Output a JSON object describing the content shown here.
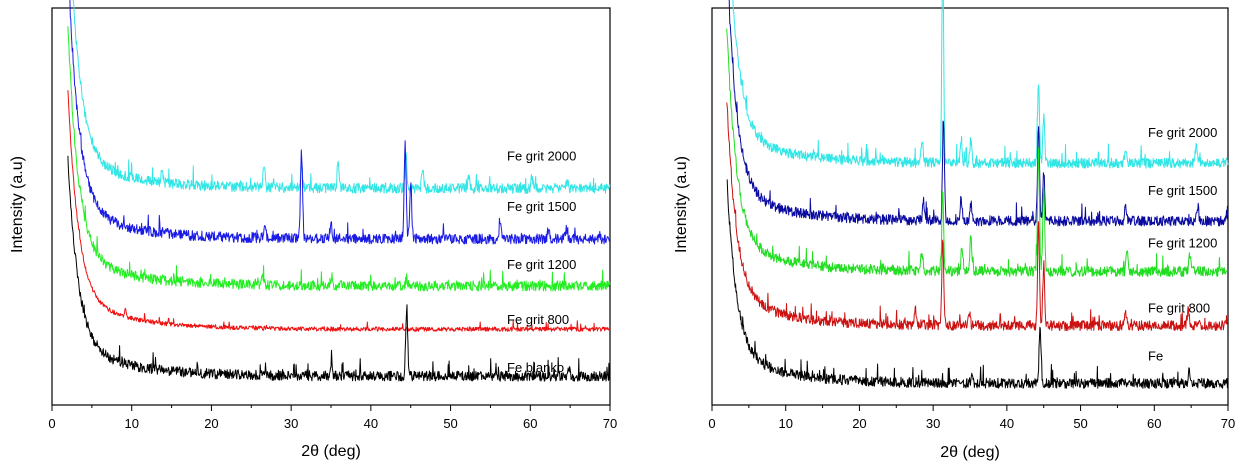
{
  "chart_data": [
    {
      "type": "line",
      "title": "",
      "xlabel": "2θ (deg)",
      "ylabel": "Intensity (a.u)",
      "xlim": [
        0,
        70
      ],
      "xticks": [
        0,
        10,
        20,
        30,
        40,
        50,
        60,
        70
      ],
      "ylim": [
        0,
        11
      ],
      "y_tick_labels": false,
      "grid": false,
      "legend": "inline labels at right",
      "series": [
        {
          "name": "Fe grit 2000",
          "color": "#33e6e6",
          "baseline": 6.0,
          "peaks": [
            [
              13.8,
              0.3
            ],
            [
              26.6,
              0.6
            ],
            [
              31.3,
              0.6
            ],
            [
              35.9,
              0.7
            ],
            [
              44.4,
              0.9
            ],
            [
              46.5,
              0.6
            ],
            [
              52.3,
              0.3
            ],
            [
              60.2,
              0.3
            ],
            [
              64.6,
              0.2
            ]
          ]
        },
        {
          "name": "Fe grit 1500",
          "color": "#1a1ae6",
          "baseline": 4.6,
          "peaks": [
            [
              26.7,
              0.3
            ],
            [
              31.3,
              2.4
            ],
            [
              35.0,
              0.4
            ],
            [
              44.3,
              2.6
            ],
            [
              45.0,
              1.6
            ],
            [
              56.2,
              0.4
            ],
            [
              62.3,
              0.3
            ],
            [
              64.5,
              0.3
            ]
          ]
        },
        {
          "name": "Fe grit 1200",
          "color": "#22ee22",
          "baseline": 3.3,
          "peaks": [
            [
              26.4,
              0.3
            ],
            [
              35.1,
              0.3
            ],
            [
              44.5,
              0.2
            ]
          ]
        },
        {
          "name": "Fe grit 800",
          "color": "#ee1111",
          "baseline": 2.1,
          "peaks": [
            [
              9.2,
              0.2
            ]
          ]
        },
        {
          "name": "Fe blanko",
          "color": "#000000",
          "baseline": 0.8,
          "peaks": [
            [
              35.0,
              0.3
            ],
            [
              44.5,
              1.8
            ],
            [
              64.8,
              0.3
            ]
          ]
        }
      ]
    },
    {
      "type": "line",
      "title": "",
      "xlabel": "2θ (deg)",
      "ylabel": "Intensity (a.u)",
      "xlim": [
        0,
        70
      ],
      "xticks": [
        0,
        10,
        20,
        30,
        40,
        50,
        60,
        70
      ],
      "ylim": [
        0,
        11
      ],
      "y_tick_labels": false,
      "grid": false,
      "legend": "inline labels at right",
      "series": [
        {
          "name": "Fe grit 2000",
          "color": "#33e6e6",
          "baseline": 6.7,
          "peaks": [
            [
              28.5,
              0.6
            ],
            [
              31.3,
              5.5
            ],
            [
              33.8,
              0.7
            ],
            [
              35.1,
              0.6
            ],
            [
              44.3,
              2.2
            ],
            [
              45.0,
              1.3
            ],
            [
              56.1,
              0.4
            ],
            [
              65.7,
              0.5
            ]
          ]
        },
        {
          "name": "Fe grit 1500",
          "color": "#0a0aa0",
          "baseline": 5.1,
          "peaks": [
            [
              28.7,
              0.5
            ],
            [
              31.4,
              2.8
            ],
            [
              33.8,
              0.6
            ],
            [
              35.1,
              0.5
            ],
            [
              44.3,
              2.7
            ],
            [
              45.0,
              1.4
            ],
            [
              56.1,
              0.4
            ],
            [
              65.9,
              0.4
            ]
          ]
        },
        {
          "name": "Fe grit 1200",
          "color": "#22dd22",
          "baseline": 3.7,
          "peaks": [
            [
              28.4,
              0.5
            ],
            [
              31.3,
              2.2
            ],
            [
              33.9,
              0.6
            ],
            [
              35.1,
              1.0
            ],
            [
              44.3,
              3.4
            ],
            [
              45.0,
              2.2
            ],
            [
              56.3,
              0.6
            ],
            [
              64.8,
              0.5
            ]
          ]
        },
        {
          "name": "Fe grit 800",
          "color": "#cc1111",
          "baseline": 2.2,
          "peaks": [
            [
              27.6,
              0.4
            ],
            [
              31.3,
              2.3
            ],
            [
              34.9,
              0.4
            ],
            [
              44.3,
              2.9
            ],
            [
              45.0,
              1.7
            ],
            [
              56.1,
              0.4
            ],
            [
              64.6,
              0.5
            ]
          ]
        },
        {
          "name": "Fe",
          "color": "#000000",
          "baseline": 0.6,
          "peaks": [
            [
              35.3,
              0.3
            ],
            [
              44.5,
              1.6
            ],
            [
              64.7,
              0.3
            ]
          ]
        }
      ]
    }
  ]
}
